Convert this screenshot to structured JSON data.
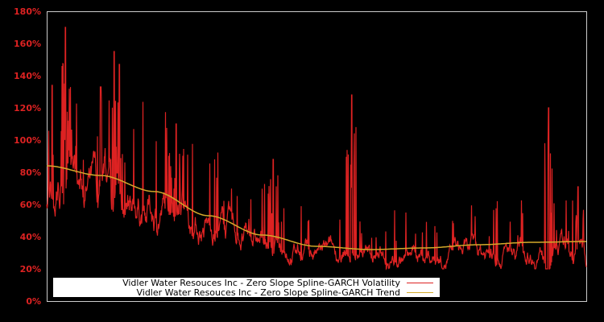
{
  "chart_data": {
    "type": "line",
    "title": "",
    "xlabel": "",
    "ylabel": "",
    "ylim": [
      0,
      180
    ],
    "y_ticks": [
      "0%",
      "20%",
      "40%",
      "60%",
      "80%",
      "100%",
      "120%",
      "140%",
      "160%",
      "180%"
    ],
    "x_ticks": [],
    "grid": false,
    "legend_position": "bottom-left inside",
    "series": [
      {
        "name": "Vidler Water Resouces Inc - Zero Slope Spline-GARCH Volatility",
        "color": "#dd2222",
        "peaks_approx": [
          {
            "x_frac": 0.01,
            "value": 134
          },
          {
            "x_frac": 0.035,
            "value": 170
          },
          {
            "x_frac": 0.1,
            "value": 133
          },
          {
            "x_frac": 0.125,
            "value": 155
          },
          {
            "x_frac": 0.135,
            "value": 147
          },
          {
            "x_frac": 0.24,
            "value": 110
          },
          {
            "x_frac": 0.42,
            "value": 88
          },
          {
            "x_frac": 0.565,
            "value": 128
          },
          {
            "x_frac": 0.93,
            "value": 120
          },
          {
            "x_frac": 0.985,
            "value": 71
          }
        ],
        "baseline_range": [
          20,
          60
        ]
      },
      {
        "name": "Vidler Water Resouces Inc - Zero Slope Spline-GARCH Trend",
        "color": "#d4a92a",
        "points": [
          {
            "x_frac": 0.0,
            "value": 84
          },
          {
            "x_frac": 0.1,
            "value": 78
          },
          {
            "x_frac": 0.2,
            "value": 68
          },
          {
            "x_frac": 0.3,
            "value": 53
          },
          {
            "x_frac": 0.4,
            "value": 41
          },
          {
            "x_frac": 0.5,
            "value": 34
          },
          {
            "x_frac": 0.6,
            "value": 32
          },
          {
            "x_frac": 0.7,
            "value": 33
          },
          {
            "x_frac": 0.8,
            "value": 35
          },
          {
            "x_frac": 0.9,
            "value": 36.5
          },
          {
            "x_frac": 1.0,
            "value": 37
          }
        ]
      }
    ]
  },
  "legend": {
    "volatility_label": "Vidler Water Resouces Inc - Zero Slope Spline-GARCH Volatility",
    "trend_label": "Vidler Water Resouces Inc - Zero Slope Spline-GARCH Trend"
  },
  "colors": {
    "background": "#000000",
    "axis_frame": "#cccccc",
    "tick_text": "#dd2222",
    "volatility": "#dd2222",
    "trend": "#d4a92a"
  }
}
